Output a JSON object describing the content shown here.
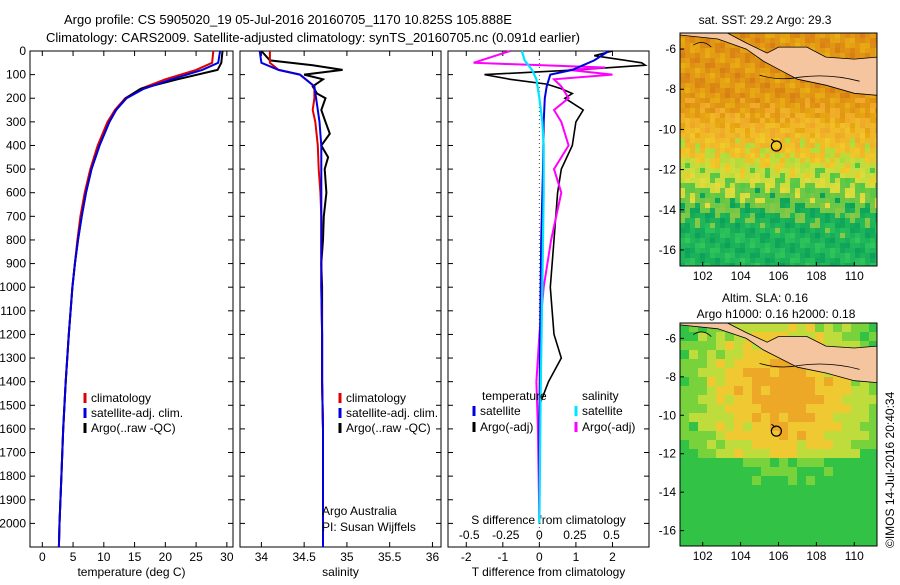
{
  "header": {
    "line1": "Argo profile: CS 5905020_19 05-Jul-2016 20160705_1170 10.825S 105.888E",
    "line2": "Climatology: CARS2009. Satellite-adjusted climatology: synTS_20160705.nc (0.091d earlier)"
  },
  "colors": {
    "climatology": "#e00000",
    "satellite": "#0000e0",
    "argo": "#000000",
    "argo_sal_diff": "#ff00ff",
    "sat_sal_diff": "#00e5ff",
    "land": "#f5c59f"
  },
  "annotations": {
    "credit1": "Argo Australia",
    "credit2": "PI: Susan Wijffels",
    "imos": "©IMOS 14-Jul-2016 20:40:34"
  },
  "chart_data": [
    {
      "type": "line",
      "name": "temperature",
      "xlabel": "temperature (deg C)",
      "ylabel": "",
      "xlim": [
        -2,
        31
      ],
      "ylim": [
        2100,
        0
      ],
      "xticks": [
        0,
        5,
        10,
        15,
        20,
        25,
        30
      ],
      "yticks": [
        0,
        100,
        200,
        300,
        400,
        500,
        600,
        700,
        800,
        900,
        1000,
        1100,
        1200,
        1300,
        1400,
        1500,
        1600,
        1700,
        1800,
        1900,
        2000
      ],
      "legend": [
        "climatology",
        "satellite-adj. clim.",
        "Argo(..raw -QC)"
      ],
      "series": [
        {
          "name": "climatology",
          "depth": [
            0,
            50,
            80,
            120,
            160,
            200,
            250,
            300,
            400,
            500,
            600,
            700,
            800,
            900,
            1000,
            1100,
            1200,
            1400,
            1600,
            1800,
            2000,
            2100
          ],
          "values": [
            27.8,
            27.6,
            25,
            20,
            16,
            13.5,
            11.8,
            10.6,
            9.0,
            7.8,
            6.9,
            6.2,
            5.7,
            5.3,
            4.9,
            4.6,
            4.3,
            3.8,
            3.4,
            3.1,
            2.8,
            2.7
          ]
        },
        {
          "name": "satellite-adj. clim.",
          "depth": [
            0,
            50,
            80,
            120,
            160,
            200,
            250,
            300,
            400,
            500,
            600,
            700,
            800,
            900,
            1000,
            1100,
            1200,
            1400,
            1600,
            1800,
            2000,
            2100
          ],
          "values": [
            28.9,
            28.6,
            26,
            21,
            16.5,
            13.7,
            12.0,
            10.9,
            9.3,
            8.0,
            7.1,
            6.4,
            5.8,
            5.3,
            4.9,
            4.6,
            4.3,
            3.8,
            3.4,
            3.1,
            2.8,
            2.7
          ]
        },
        {
          "name": "Argo(..raw -QC)",
          "depth": [
            0,
            50,
            80,
            120,
            160,
            200,
            250,
            300,
            400,
            500,
            600,
            700,
            800,
            900,
            1000,
            1100,
            1200,
            1400,
            1600,
            1800,
            2000,
            2100
          ],
          "values": [
            29.3,
            29.1,
            28.5,
            22,
            16,
            13.6,
            12.0,
            10.9,
            9.3,
            8.0,
            7.1,
            6.4,
            5.8,
            5.3,
            4.9,
            4.6,
            4.3,
            3.8,
            3.4,
            3.1,
            2.8,
            2.7
          ]
        }
      ]
    },
    {
      "type": "line",
      "name": "salinity",
      "xlabel": "salinity",
      "xlim": [
        33.75,
        36.1
      ],
      "ylim": [
        2100,
        0
      ],
      "xticks": [
        34,
        34.5,
        35,
        35.5,
        36
      ],
      "legend": [
        "climatology",
        "satellite-adj. clim.",
        "Argo(..raw -QC)"
      ],
      "series": [
        {
          "name": "climatology",
          "depth": [
            0,
            50,
            80,
            100,
            150,
            200,
            250,
            300,
            400,
            500,
            600,
            700,
            800,
            1000,
            1200,
            1400,
            1600,
            1800,
            2000,
            2100
          ],
          "values": [
            34.1,
            34.1,
            34.2,
            34.45,
            34.62,
            34.62,
            34.6,
            34.63,
            34.66,
            34.67,
            34.69,
            34.7,
            34.7,
            34.7,
            34.71,
            34.71,
            34.72,
            34.72,
            34.72,
            34.72
          ]
        },
        {
          "name": "satellite-adj. clim.",
          "depth": [
            0,
            50,
            80,
            100,
            150,
            200,
            250,
            300,
            400,
            500,
            600,
            700,
            800,
            1000,
            1200,
            1400,
            1600,
            1800,
            2000,
            2100
          ],
          "values": [
            33.98,
            34.0,
            34.2,
            34.45,
            34.62,
            34.64,
            34.66,
            34.68,
            34.7,
            34.7,
            34.7,
            34.7,
            34.7,
            34.7,
            34.71,
            34.71,
            34.72,
            34.72,
            34.72,
            34.72
          ]
        },
        {
          "name": "Argo(..raw -QC)",
          "depth": [
            0,
            40,
            60,
            80,
            100,
            120,
            150,
            180,
            200,
            250,
            300,
            350,
            400,
            450,
            500,
            600,
            700,
            800,
            900,
            1000,
            1200,
            1400,
            1600,
            1800,
            2000
          ],
          "values": [
            34.0,
            34.1,
            34.6,
            34.95,
            34.5,
            34.72,
            34.6,
            34.65,
            34.75,
            34.7,
            34.75,
            34.8,
            34.7,
            34.78,
            34.74,
            34.76,
            34.73,
            34.72,
            34.7,
            34.71,
            34.71,
            34.71,
            34.72,
            34.72,
            34.72
          ]
        }
      ]
    },
    {
      "type": "line",
      "name": "differences",
      "xlabel": "T difference from climatology",
      "xlabel_top": "S difference from climatology",
      "xlim": [
        -2.5,
        3
      ],
      "ylim": [
        2100,
        0
      ],
      "xticks": [
        -2,
        -1,
        0,
        1,
        2
      ],
      "xticks_s": [
        "-0.5",
        "-0.25",
        "0",
        "0.25",
        "0.5"
      ],
      "legend_titles": [
        "temperature",
        "salinity"
      ],
      "legend": [
        "satellite",
        "Argo(-adj)",
        "satellite",
        "Argo(-adj)"
      ],
      "series": [
        {
          "name": "temperature satellite",
          "depth": [
            0,
            40,
            60,
            80,
            100,
            150,
            200,
            300,
            500,
            800,
            1200,
            1600,
            2000
          ],
          "values": [
            1.9,
            1.5,
            1.2,
            0.9,
            0.3,
            0.2,
            0.15,
            0.12,
            0.1,
            0.05,
            0.02,
            0.0,
            0.0
          ]
        },
        {
          "name": "temperature Argo(-adj)",
          "depth": [
            0,
            20,
            50,
            60,
            80,
            100,
            120,
            140,
            160,
            180,
            200,
            250,
            300,
            400,
            500,
            600,
            800,
            1000,
            1200,
            1300,
            1400,
            1500,
            1600,
            1800,
            2000
          ],
          "values": [
            2.0,
            1.5,
            2.8,
            2.9,
            1.0,
            -1.5,
            -0.8,
            0.2,
            0.6,
            0.9,
            0.7,
            1.2,
            1.0,
            0.9,
            0.6,
            0.5,
            0.4,
            0.3,
            0.4,
            0.6,
            0.25,
            0.0,
            0.0,
            0.0,
            0.0
          ]
        },
        {
          "name": "salinity satellite",
          "depth": [
            0,
            40,
            80,
            120,
            200,
            300,
            400,
            600,
            1000,
            1400,
            2000
          ],
          "values": [
            -0.12,
            -0.1,
            -0.05,
            -0.02,
            0.0,
            0.02,
            0.03,
            0.03,
            0.02,
            0.01,
            0.0
          ]
        },
        {
          "name": "salinity Argo(-adj)",
          "depth": [
            0,
            50,
            70,
            80,
            100,
            120,
            150,
            200,
            250,
            300,
            400,
            500,
            600,
            800,
            1000,
            1200,
            1400,
            1600,
            2000
          ],
          "values": [
            -0.2,
            -0.45,
            0.45,
            0.2,
            0.5,
            0.1,
            0.15,
            0.2,
            0.1,
            0.15,
            0.2,
            0.1,
            0.15,
            0.08,
            0.03,
            0.0,
            -0.02,
            -0.01,
            0.0
          ]
        }
      ]
    },
    {
      "type": "heatmap",
      "name": "sat-sst-map",
      "title": "sat. SST: 29.2 Argo: 29.3",
      "xlim": [
        100.8,
        111.2
      ],
      "ylim": [
        -16.8,
        -5.2
      ],
      "xticks": [
        102,
        104,
        106,
        108,
        110
      ],
      "yticks": [
        -6,
        -8,
        -10,
        -12,
        -14,
        -16
      ],
      "marker": {
        "lon": 105.888,
        "lat": -10.825
      }
    },
    {
      "type": "heatmap",
      "name": "sla-map",
      "title": "Altim. SLA: 0.16",
      "subtitle": "Argo h1000: 0.16 h2000: 0.18",
      "xlim": [
        100.8,
        111.2
      ],
      "ylim": [
        -16.8,
        -5.2
      ],
      "xticks": [
        102,
        104,
        106,
        108,
        110
      ],
      "yticks": [
        -6,
        -8,
        -10,
        -12,
        -14,
        -16
      ],
      "marker": {
        "lon": 105.888,
        "lat": -10.825
      }
    }
  ]
}
